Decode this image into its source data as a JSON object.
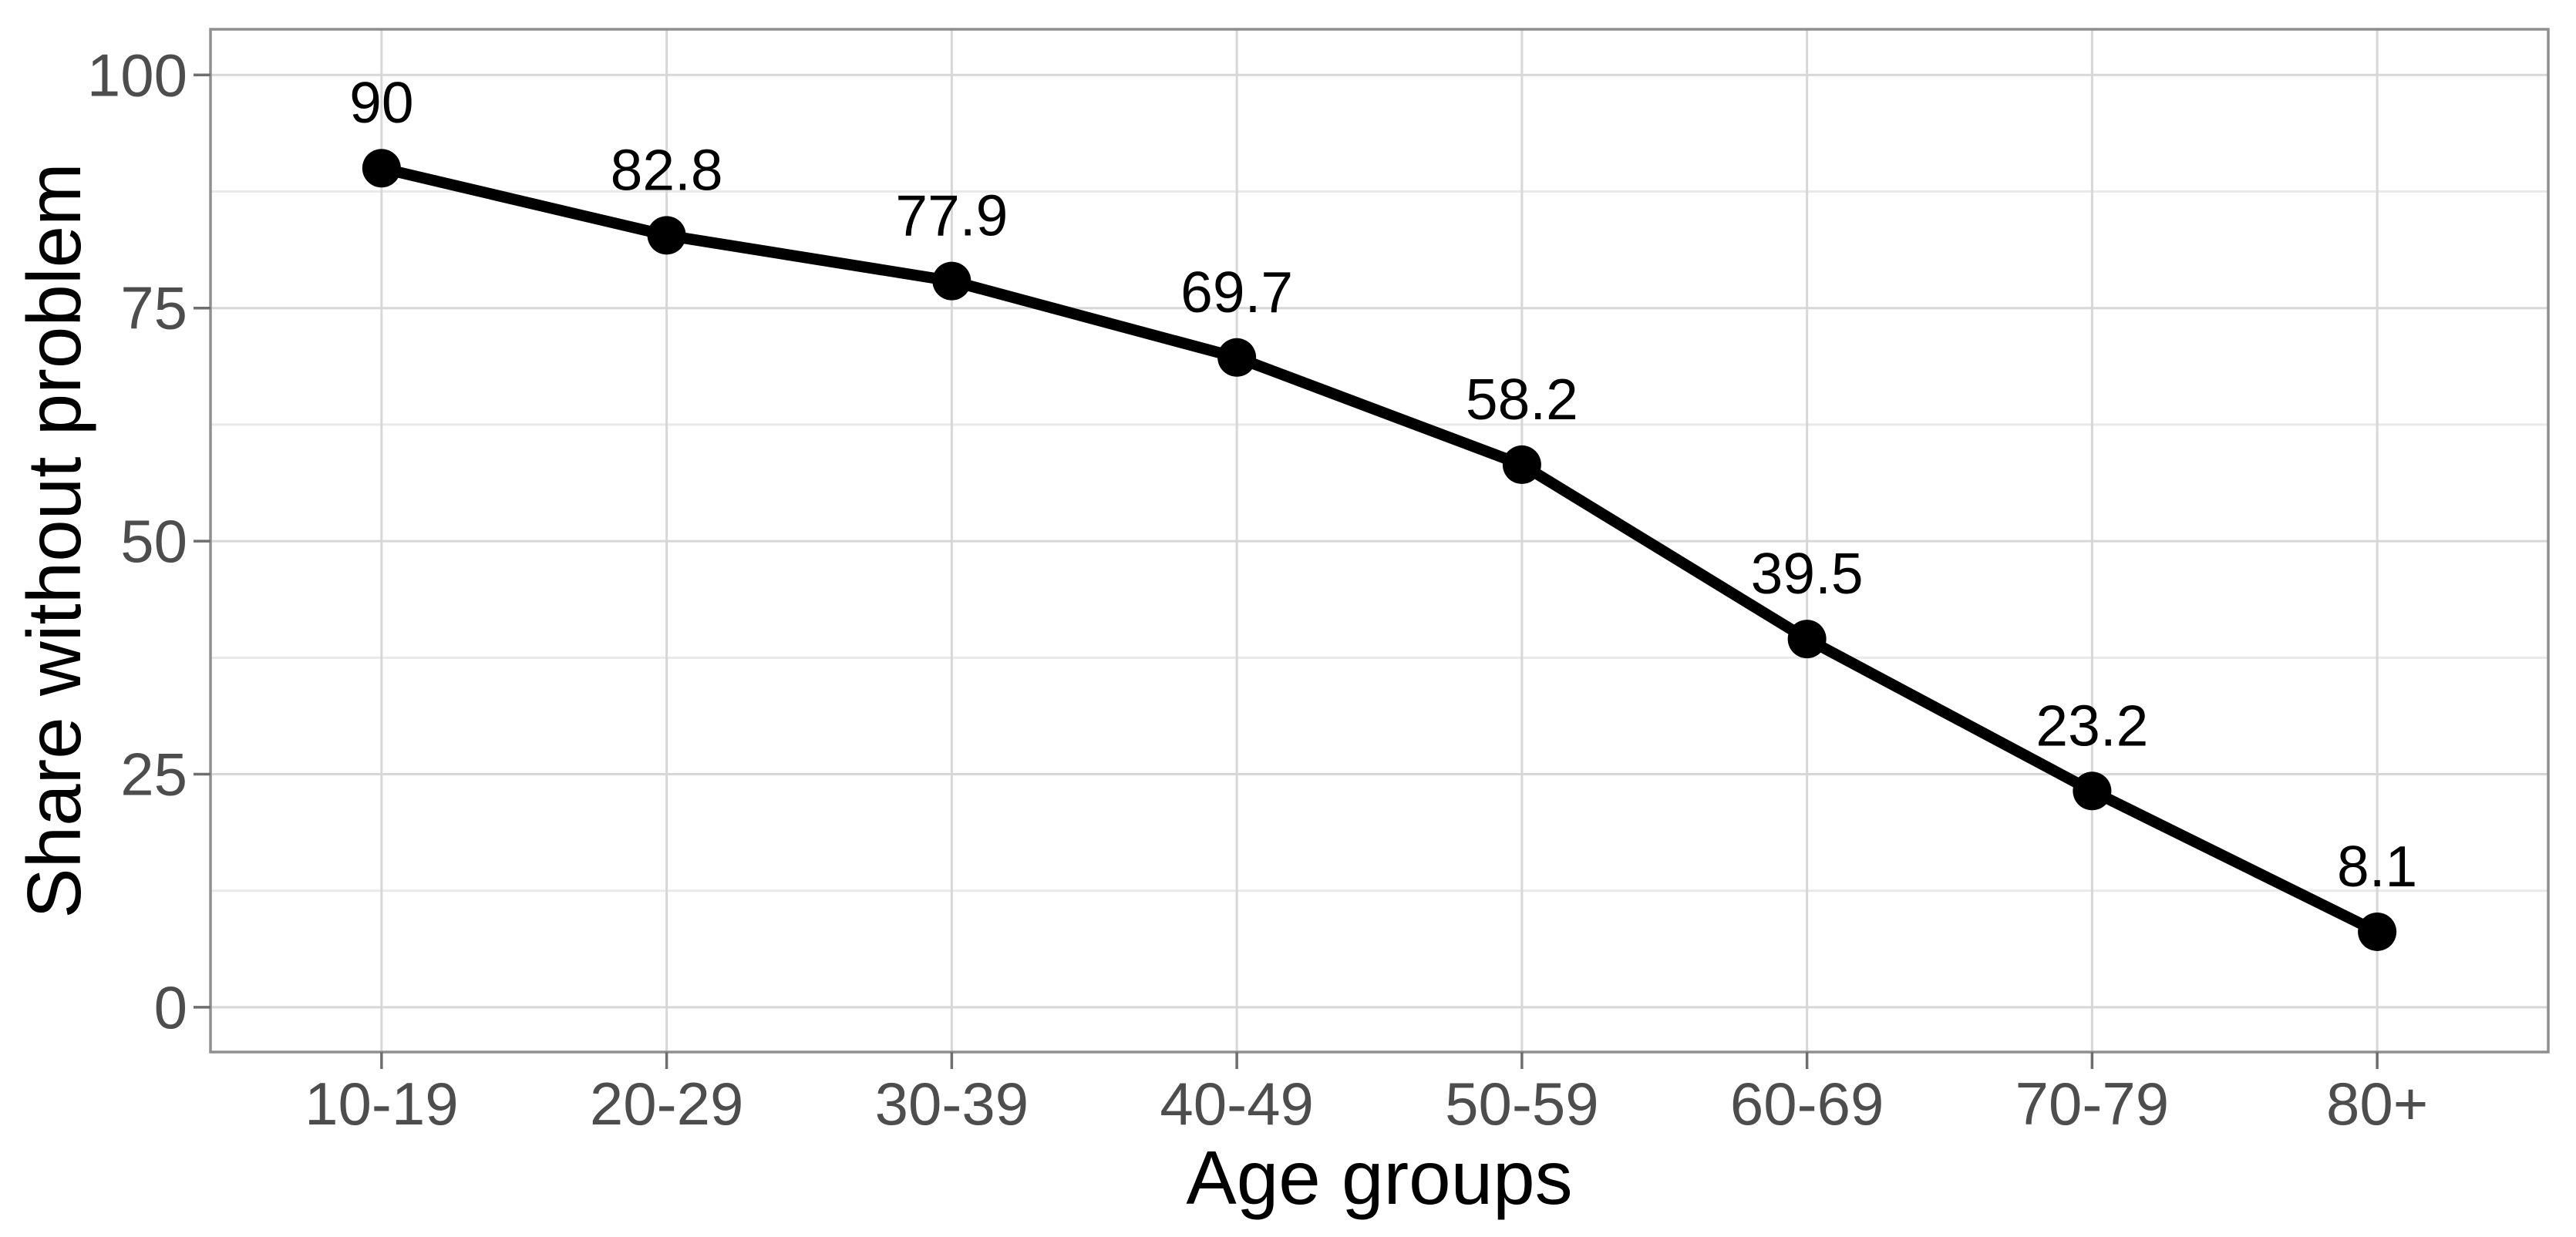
{
  "chart_data": {
    "type": "line",
    "title": "",
    "xlabel": "Age groups",
    "ylabel": "Share without problem",
    "categories": [
      "10-19",
      "20-29",
      "30-39",
      "40-49",
      "50-59",
      "60-69",
      "70-79",
      "80+"
    ],
    "series": [
      {
        "name": "Share without problem",
        "values": [
          90,
          82.8,
          77.9,
          69.7,
          58.2,
          39.5,
          23.2,
          8.1
        ],
        "point_labels": [
          "90",
          "82.8",
          "77.9",
          "69.7",
          "58.2",
          "39.5",
          "23.2",
          "8.1"
        ]
      }
    ],
    "ylim": [
      0,
      100
    ],
    "y_major_ticks": [
      0,
      25,
      50,
      75,
      100
    ],
    "y_tick_labels": [
      "0",
      "25",
      "50",
      "75",
      "100"
    ],
    "y_minor_ticks": [
      12.5,
      37.5,
      62.5,
      87.5
    ],
    "grid": true,
    "legend_position": "none",
    "marker": "filled-circle",
    "colors": {
      "line": "#000000",
      "point": "#000000",
      "data_label": "#000000",
      "axis_title": "#000000",
      "tick_label": "#4d4d4d",
      "grid_major": "#d7d7d7",
      "grid_minor": "#e9e9e9",
      "panel_border": "#8f8f8f",
      "tick_mark": "#6e6e6e",
      "background": "#ffffff"
    }
  }
}
